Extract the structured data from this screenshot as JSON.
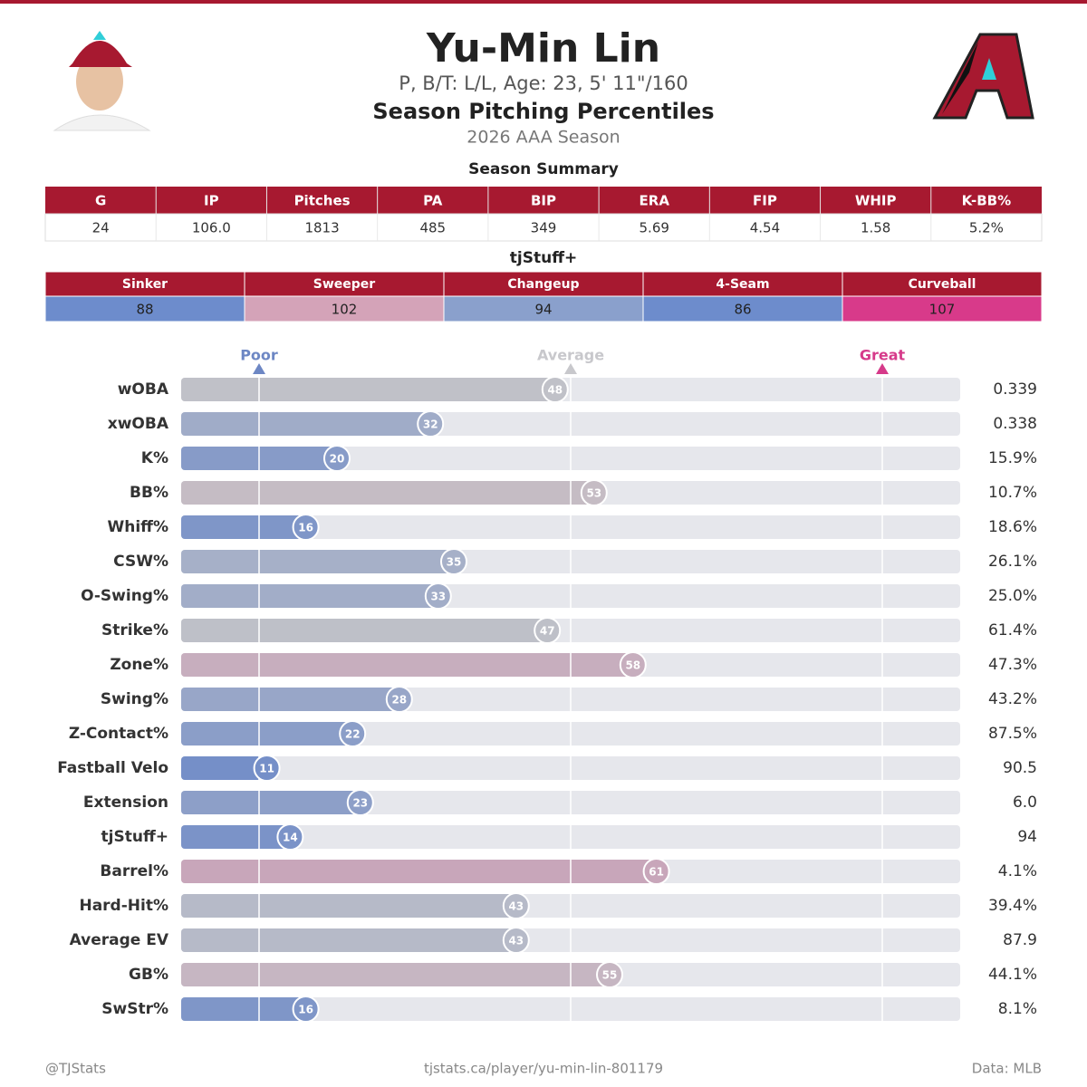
{
  "header": {
    "name": "Yu-Min Lin",
    "bio": "P, B/T: L/L, Age: 23, 5' 11\"/160",
    "title": "Season Pitching Percentiles",
    "season": "2026 AAA Season"
  },
  "summary": {
    "title": "Season Summary",
    "columns": [
      "G",
      "IP",
      "Pitches",
      "PA",
      "BIP",
      "ERA",
      "FIP",
      "WHIP",
      "K-BB%"
    ],
    "values": [
      "24",
      "106.0",
      "1813",
      "485",
      "349",
      "5.69",
      "4.54",
      "1.58",
      "5.2%"
    ]
  },
  "stuff": {
    "title": "tjStuff+",
    "columns": [
      "Sinker",
      "Sweeper",
      "Changeup",
      "4-Seam",
      "Curveball"
    ],
    "values": [
      88,
      102,
      94,
      86,
      107
    ],
    "colors": [
      "#6d8ccc",
      "#d4a3b8",
      "#8aa0cc",
      "#6d8ccc",
      "#d83a8a"
    ]
  },
  "chart_data": {
    "type": "bar",
    "orientation": "horizontal",
    "categories": [
      "wOBA",
      "xwOBA",
      "K%",
      "BB%",
      "Whiff%",
      "CSW%",
      "O-Swing%",
      "Strike%",
      "Zone%",
      "Swing%",
      "Z-Contact%",
      "Fastball Velo",
      "Extension",
      "tjStuff+",
      "Barrel%",
      "Hard-Hit%",
      "Average EV",
      "GB%",
      "SwStr%"
    ],
    "values": [
      48,
      32,
      20,
      53,
      16,
      35,
      33,
      47,
      58,
      28,
      22,
      11,
      23,
      14,
      61,
      43,
      43,
      55,
      16
    ],
    "stats": [
      "0.339",
      "0.338",
      "15.9%",
      "10.7%",
      "18.6%",
      "26.1%",
      "25.0%",
      "61.4%",
      "47.3%",
      "43.2%",
      "87.5%",
      "90.5",
      "6.0",
      "94",
      "4.1%",
      "39.4%",
      "87.9",
      "44.1%",
      "8.1%"
    ],
    "xlim": [
      0,
      100
    ],
    "xticks": [
      {
        "value": 10,
        "label": "Poor"
      },
      {
        "value": 50,
        "label": "Average"
      },
      {
        "value": 90,
        "label": "Great"
      }
    ],
    "xtick_colors": [
      "#6d87c4",
      "#c8c8cc",
      "#d63a8a"
    ],
    "colormap": [
      "#5f80c8",
      "#c4c4c8",
      "#d63a8a"
    ],
    "track_color": "#e6e7ec"
  },
  "footer": {
    "left": "@TJStats",
    "center": "tjstats.ca/player/yu-min-lin-801179",
    "right": "Data: MLB"
  }
}
